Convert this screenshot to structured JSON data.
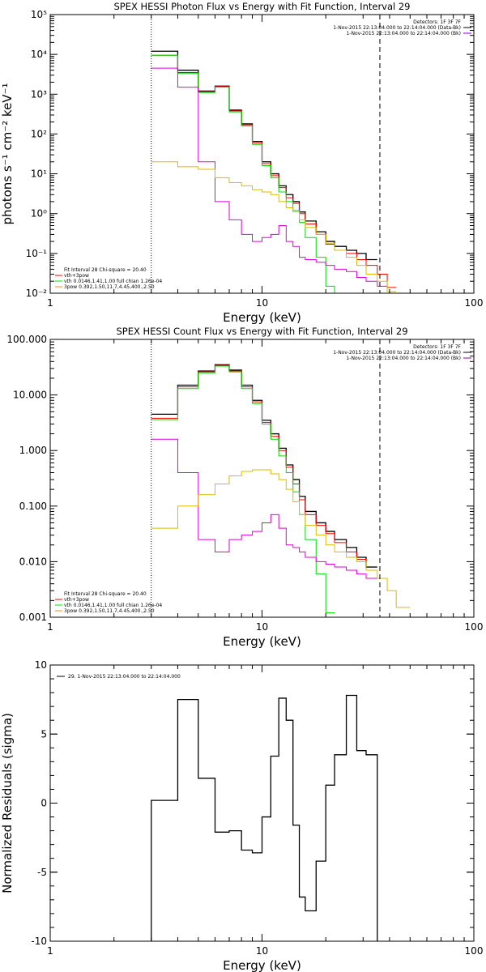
{
  "colors": {
    "black": "#000000",
    "red": "#ff0000",
    "green": "#00dd00",
    "magenta": "#dd00dd",
    "yellow": "#ddbb00",
    "purple": "#8800cc",
    "orange": "#ff8800"
  },
  "chart_data": [
    {
      "type": "line",
      "title": "SPEX HESSI Photon Flux vs Energy with Fit Function, Interval 29",
      "xlabel": "Energy (keV)",
      "ylabel": "photons s⁻¹ cm⁻² keV⁻¹",
      "xscale": "log",
      "yscale": "log",
      "xlim": [
        1,
        100
      ],
      "ylim": [
        0.01,
        100000
      ],
      "xticks": [
        {
          "v": 1,
          "label": "1"
        },
        {
          "v": 10,
          "label": "10"
        },
        {
          "v": 100,
          "label": "100"
        }
      ],
      "yticks": [
        {
          "v": 0.01,
          "label": "10⁻²"
        },
        {
          "v": 0.1,
          "label": "10⁻¹"
        },
        {
          "v": 1,
          "label": "10⁰"
        },
        {
          "v": 10,
          "label": "10¹"
        },
        {
          "v": 100,
          "label": "10²"
        },
        {
          "v": 1000,
          "label": "10³"
        },
        {
          "v": 10000,
          "label": "10⁴"
        },
        {
          "v": 100000,
          "label": "10⁵"
        }
      ],
      "vlines": [
        {
          "x": 3.0,
          "style": "dotted"
        },
        {
          "x": 36,
          "style": "dashed"
        }
      ],
      "info": [
        {
          "text": "Detectors: 1F 3F 7F",
          "color": "black"
        },
        {
          "text": "1-Nov-2015 22:13:04.000 to 22:14:04.000 (Data-Bk)",
          "color": "black",
          "swatch": "black"
        },
        {
          "text": "1-Nov-2015 22:13:04.000 to 22:14:04.000 (Bk)",
          "color": "black",
          "swatch": "purple"
        }
      ],
      "legend": [
        {
          "text": "Fit Interval 28   Chi-square = 20.40",
          "color": "black"
        },
        {
          "text": "vth+3pow",
          "color": "red"
        },
        {
          "text": "vth 0.0146,1.41,1.00  full chian 1.26e-04",
          "color": "green"
        },
        {
          "text": "3pow 0.392,1.50,11.7,4.45,400.,2.50",
          "color": "orange"
        }
      ],
      "edges": [
        3.0,
        4.0,
        5.0,
        6.0,
        7.0,
        8.0,
        9.0,
        10.0,
        11.0,
        12.0,
        13.0,
        14.0,
        15.0,
        16.0,
        18.0,
        20.0,
        22.0,
        25.0,
        28.0,
        31.0,
        35.0,
        39.0,
        43.0,
        50.0
      ],
      "series": [
        {
          "color": "black",
          "width": 1.3,
          "values": [
            12000,
            4000,
            1200,
            1600,
            400,
            180,
            65,
            20,
            10,
            5,
            3,
            2,
            1.1,
            0.65,
            0.35,
            0.2,
            0.15,
            0.12,
            0.1,
            0.07
          ]
        },
        {
          "color": "red",
          "width": 1,
          "values": [
            9500,
            3500,
            1150,
            1550,
            380,
            170,
            60,
            18,
            9,
            4.5,
            2.5,
            1.8,
            1.0,
            0.55,
            0.3,
            0.17,
            0.12,
            0.1,
            0.07,
            0.05,
            0.03,
            0.014
          ]
        },
        {
          "color": "green",
          "width": 1,
          "values": [
            9500,
            3300,
            1100,
            1500,
            360,
            160,
            55,
            16,
            8,
            3.5,
            2,
            1.2,
            0.6,
            0.25,
            0.08,
            0.015,
            0.005
          ]
        },
        {
          "color": "magenta",
          "width": 1,
          "values": [
            4500,
            1500,
            20,
            2,
            0.7,
            0.3,
            0.2,
            0.25,
            0.3,
            0.5,
            0.2,
            0.15,
            0.08,
            0.07,
            0.06,
            0.05,
            0.04,
            0.035,
            0.025,
            0.02,
            0.015
          ]
        },
        {
          "color": "yellow",
          "width": 1,
          "values": [
            20,
            15,
            13,
            8,
            6,
            5,
            4,
            3.5,
            3,
            2,
            1.4,
            1.1,
            0.7,
            0.45,
            0.3,
            0.18,
            0.12,
            0.08,
            0.05,
            0.03,
            0.02,
            0.011
          ]
        }
      ]
    },
    {
      "type": "line",
      "title": "SPEX HESSI Count Flux vs Energy with Fit Function, Interval 29",
      "xlabel": "Energy (keV)",
      "ylabel": "",
      "xscale": "log",
      "yscale": "log",
      "xlim": [
        1,
        100
      ],
      "ylim": [
        0.001,
        100
      ],
      "xticks": [
        {
          "v": 1,
          "label": "1"
        },
        {
          "v": 10,
          "label": "10"
        },
        {
          "v": 100,
          "label": "100"
        }
      ],
      "yticks": [
        {
          "v": 0.001,
          "label": "0.001"
        },
        {
          "v": 0.01,
          "label": "0.010"
        },
        {
          "v": 0.1,
          "label": "0.100"
        },
        {
          "v": 1,
          "label": "1.000"
        },
        {
          "v": 10,
          "label": "10.000"
        },
        {
          "v": 100,
          "label": "100.000"
        }
      ],
      "vlines": [
        {
          "x": 3.0,
          "style": "dotted"
        },
        {
          "x": 36,
          "style": "dashed"
        }
      ],
      "info": [
        {
          "text": "Detectors: 1F 3F 7F",
          "color": "black"
        },
        {
          "text": "1-Nov-2015 22:13:04.000 to 22:14:04.000 (Data-Bk)",
          "color": "black",
          "swatch": "black"
        },
        {
          "text": "1-Nov-2015 22:13:04.000 to 22:14:04.000 (Bk)",
          "color": "black",
          "swatch": "purple"
        }
      ],
      "legend": [
        {
          "text": "Fit Interval 28   Chi-square = 20.40",
          "color": "black"
        },
        {
          "text": "vth+3pow",
          "color": "red"
        },
        {
          "text": "vth 0.0146,1.41,1.00  full chian 1.26e-04",
          "color": "green"
        },
        {
          "text": "3pow 0.392,1.50,11.7,4.45,400.,2.50",
          "color": "orange"
        }
      ],
      "edges": [
        3.0,
        4.0,
        5.0,
        6.0,
        7.0,
        8.0,
        9.0,
        10.0,
        11.0,
        12.0,
        13.0,
        14.0,
        15.0,
        16.0,
        18.0,
        20.0,
        22.0,
        25.0,
        28.0,
        31.0,
        35.0,
        39.0,
        43.0,
        50.0
      ],
      "series": [
        {
          "color": "black",
          "width": 1.3,
          "values": [
            4.5,
            15,
            27,
            35,
            28,
            15,
            8,
            3.5,
            2,
            1.1,
            0.55,
            0.3,
            0.15,
            0.08,
            0.05,
            0.035,
            0.025,
            0.018,
            0.012,
            0.008
          ]
        },
        {
          "color": "red",
          "width": 1,
          "values": [
            3.8,
            14,
            26,
            34,
            27,
            14,
            7.5,
            3.2,
            1.8,
            1.0,
            0.5,
            0.25,
            0.13,
            0.07,
            0.045,
            0.032,
            0.022,
            0.015,
            0.011,
            0.007
          ]
        },
        {
          "color": "green",
          "width": 1,
          "values": [
            3.6,
            13,
            25,
            33,
            26,
            13,
            7,
            3,
            1.6,
            0.8,
            0.4,
            0.18,
            0.07,
            0.025,
            0.006,
            0.0012
          ]
        },
        {
          "color": "magenta",
          "width": 1,
          "values": [
            1.6,
            0.4,
            0.025,
            0.015,
            0.025,
            0.03,
            0.035,
            0.05,
            0.07,
            0.04,
            0.02,
            0.018,
            0.015,
            0.012,
            0.01,
            0.009,
            0.008,
            0.007,
            0.006,
            0.005
          ]
        },
        {
          "color": "yellow",
          "width": 1,
          "values": [
            0.04,
            0.1,
            0.16,
            0.25,
            0.35,
            0.42,
            0.45,
            0.45,
            0.38,
            0.3,
            0.2,
            0.12,
            0.07,
            0.045,
            0.03,
            0.02,
            0.015,
            0.012,
            0.01,
            0.007,
            0.005,
            0.003,
            0.0015
          ]
        }
      ]
    },
    {
      "type": "line",
      "title": "",
      "xlabel": "Energy (keV)",
      "ylabel": "Normalized Residuals (sigma)",
      "xscale": "log",
      "yscale": "linear",
      "xlim": [
        1,
        100
      ],
      "ylim": [
        -10,
        10
      ],
      "xticks": [
        {
          "v": 1,
          "label": "1"
        },
        {
          "v": 10,
          "label": "10"
        },
        {
          "v": 100,
          "label": "100"
        }
      ],
      "yticks": [
        {
          "v": -10,
          "label": "-10"
        },
        {
          "v": -5,
          "label": "-5"
        },
        {
          "v": 0,
          "label": "0"
        },
        {
          "v": 5,
          "label": "5"
        },
        {
          "v": 10,
          "label": "10"
        }
      ],
      "legend": [
        {
          "text": "29.  1-Nov-2015 22:13:04.000 to 22:14:04.000",
          "color": "black",
          "swatch": "black"
        }
      ],
      "edges": [
        3.0,
        4.0,
        5.0,
        6.0,
        7.0,
        8.0,
        9.0,
        10.0,
        11.0,
        12.0,
        13.0,
        14.0,
        15.0,
        16.0,
        18.0,
        20.0,
        22.0,
        25.0,
        28.0,
        31.0,
        35.0,
        39.0
      ],
      "series": [
        {
          "color": "black",
          "width": 1.3,
          "drop_ends": true,
          "values": [
            0.2,
            7.5,
            1.8,
            -2.1,
            -2.0,
            -3.4,
            -3.6,
            -1.0,
            3.4,
            7.6,
            6.0,
            -1.6,
            -6.8,
            -7.8,
            -4.2,
            1.3,
            3.5,
            7.8,
            3.8,
            3.5
          ]
        }
      ]
    }
  ]
}
